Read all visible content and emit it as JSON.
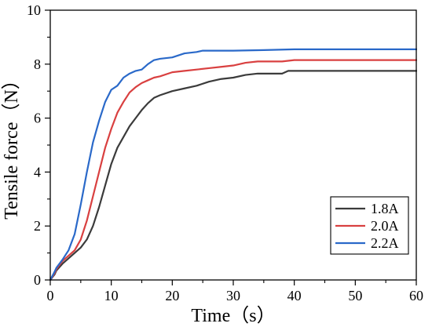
{
  "chart_data": {
    "type": "line",
    "title": "",
    "xlabel": "Time（s）",
    "ylabel": "Tensile force（N）",
    "xlim": [
      0,
      60
    ],
    "ylim": [
      0,
      10
    ],
    "xticks": [
      0,
      10,
      20,
      30,
      40,
      50,
      60
    ],
    "yticks": [
      0,
      2,
      4,
      6,
      8,
      10
    ],
    "grid": false,
    "legend_position": "lower-right",
    "series": [
      {
        "name": "1.8A",
        "color": "#3b3b3b",
        "x": [
          0,
          0.7,
          1,
          2,
          3,
          4,
          5,
          6,
          7,
          8,
          9,
          10,
          11,
          12,
          13,
          14,
          15,
          16,
          17,
          18,
          20,
          22,
          24,
          26,
          28,
          30,
          32,
          34,
          36,
          38,
          39,
          40,
          45,
          50,
          55,
          60
        ],
        "y": [
          0,
          0.2,
          0.35,
          0.6,
          0.8,
          1.0,
          1.2,
          1.5,
          2.0,
          2.7,
          3.5,
          4.3,
          4.9,
          5.3,
          5.7,
          6.0,
          6.3,
          6.55,
          6.75,
          6.85,
          7.0,
          7.1,
          7.2,
          7.35,
          7.45,
          7.5,
          7.6,
          7.65,
          7.65,
          7.65,
          7.75,
          7.75,
          7.75,
          7.75,
          7.75,
          7.75
        ]
      },
      {
        "name": "2.0A",
        "color": "#d94040",
        "x": [
          0,
          0.7,
          1,
          2,
          3,
          4,
          5,
          6,
          7,
          8,
          9,
          10,
          11,
          12,
          13,
          14,
          15,
          16,
          17,
          18,
          20,
          22,
          24,
          26,
          28,
          30,
          32,
          34,
          36,
          38,
          40,
          45,
          50,
          55,
          60
        ],
        "y": [
          0,
          0.25,
          0.4,
          0.7,
          0.9,
          1.1,
          1.5,
          2.2,
          3.1,
          4.0,
          4.9,
          5.6,
          6.2,
          6.6,
          6.95,
          7.15,
          7.3,
          7.4,
          7.5,
          7.55,
          7.7,
          7.75,
          7.8,
          7.85,
          7.9,
          7.95,
          8.05,
          8.1,
          8.1,
          8.1,
          8.15,
          8.15,
          8.15,
          8.15,
          8.15
        ]
      },
      {
        "name": "2.2A",
        "color": "#2a69c9",
        "x": [
          0,
          0.7,
          1,
          2,
          3,
          4,
          5,
          6,
          7,
          8,
          9,
          10,
          11,
          12,
          13,
          14,
          15,
          16,
          17,
          18,
          20,
          22,
          24,
          25,
          26,
          28,
          30,
          35,
          40,
          45,
          50,
          55,
          60
        ],
        "y": [
          0,
          0.3,
          0.45,
          0.75,
          1.1,
          1.7,
          2.8,
          4.0,
          5.1,
          5.9,
          6.6,
          7.05,
          7.2,
          7.5,
          7.65,
          7.75,
          7.8,
          8.0,
          8.15,
          8.2,
          8.25,
          8.4,
          8.45,
          8.5,
          8.5,
          8.5,
          8.5,
          8.52,
          8.55,
          8.55,
          8.55,
          8.55,
          8.55
        ]
      }
    ]
  }
}
